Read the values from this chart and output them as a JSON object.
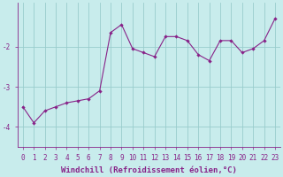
{
  "x": [
    0,
    1,
    2,
    3,
    4,
    5,
    6,
    7,
    8,
    9,
    10,
    11,
    12,
    13,
    14,
    15,
    16,
    17,
    18,
    19,
    20,
    21,
    22,
    23
  ],
  "y": [
    -3.5,
    -3.9,
    -3.6,
    -3.5,
    -3.4,
    -3.35,
    -3.3,
    -3.1,
    -1.65,
    -1.45,
    -2.05,
    -2.15,
    -2.25,
    -1.75,
    -1.75,
    -1.85,
    -2.2,
    -2.35,
    -1.85,
    -1.85,
    -2.15,
    -2.05,
    -1.85,
    -1.3
  ],
  "xlabel": "Windchill (Refroidissement éolien,°C)",
  "line_color": "#882288",
  "marker": "D",
  "marker_size": 2.2,
  "background_color": "#c8ecec",
  "grid_color": "#99cccc",
  "ylim": [
    -4.5,
    -0.9
  ],
  "xlim": [
    -0.5,
    23.5
  ],
  "yticks": [
    -4,
    -3,
    -2
  ],
  "ytick_labels": [
    "-4",
    "-3",
    "-2"
  ],
  "xticks": [
    0,
    1,
    2,
    3,
    4,
    5,
    6,
    7,
    8,
    9,
    10,
    11,
    12,
    13,
    14,
    15,
    16,
    17,
    18,
    19,
    20,
    21,
    22,
    23
  ],
  "tick_fontsize": 5.5,
  "xlabel_fontsize": 6.5,
  "tick_color": "#882288",
  "xlabel_color": "#882288"
}
